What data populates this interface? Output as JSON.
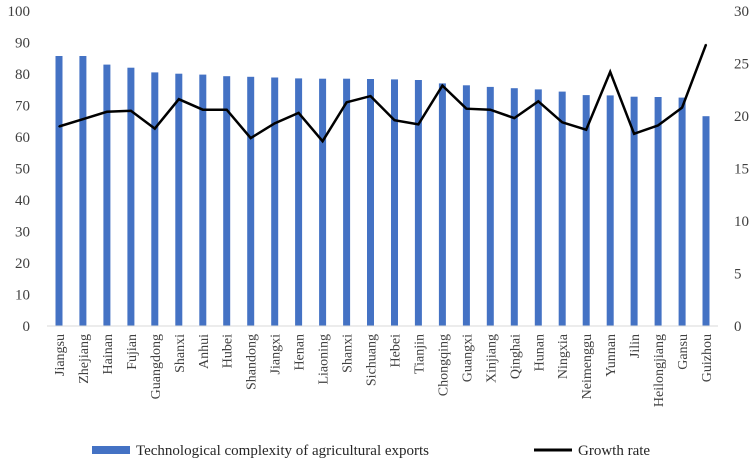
{
  "chart_data": {
    "type": "bar",
    "title": "",
    "xlabel": "",
    "categories": [
      "Jiangsu",
      "Zhejiang",
      "Hainan",
      "Fujian",
      "Guangdong",
      "Shanxi",
      "Anhui",
      "Hubei",
      "Shandong",
      "Jiangxi",
      "Henan",
      "Liaoning",
      "Shanxi",
      "Sichuang",
      "Hebei",
      "Tianjin",
      "Chongqing",
      "Guangxi",
      "Xinjiang",
      "Qinghai",
      "Hunan",
      "Ningxia",
      "Neimenggu",
      "Yunnan",
      "Jilin",
      "Heilongjiang",
      "Gansu",
      "Guizhou"
    ],
    "series": [
      {
        "name": "Technological complexity of agricultural exports",
        "type": "bar",
        "axis": "left",
        "color": "#4472C4",
        "values": [
          85.7,
          85.7,
          83,
          82,
          80.5,
          80.1,
          79.8,
          79.3,
          79.1,
          78.9,
          78.6,
          78.5,
          78.5,
          78.4,
          78.3,
          78.1,
          77,
          76.4,
          75.9,
          75.5,
          75.1,
          74.4,
          73.3,
          73.2,
          72.8,
          72.7,
          72.5,
          66.6
        ]
      },
      {
        "name": "Growth rate",
        "type": "line",
        "axis": "right",
        "color": "#000000",
        "values": [
          19,
          19.7,
          20.4,
          20.5,
          18.8,
          21.6,
          20.6,
          20.6,
          17.9,
          19.3,
          20.3,
          17.6,
          21.3,
          21.9,
          19.6,
          19.2,
          22.9,
          20.7,
          20.6,
          19.8,
          21.4,
          19.4,
          18.7,
          24.2,
          18.3,
          19.1,
          20.8,
          26.8
        ]
      }
    ],
    "y_left": {
      "min": 0,
      "max": 100,
      "step": 10,
      "ticks": [
        "0",
        "10",
        "20",
        "30",
        "40",
        "50",
        "60",
        "70",
        "80",
        "90",
        "100"
      ]
    },
    "y_right": {
      "min": 0,
      "max": 30,
      "step": 5,
      "ticks": [
        "0",
        "5",
        "10",
        "15",
        "20",
        "25",
        "30"
      ]
    },
    "grid": false,
    "legend": {
      "position": "bottom",
      "bar_label": "Technological complexity of agricultural exports",
      "line_label": "Growth rate"
    }
  }
}
